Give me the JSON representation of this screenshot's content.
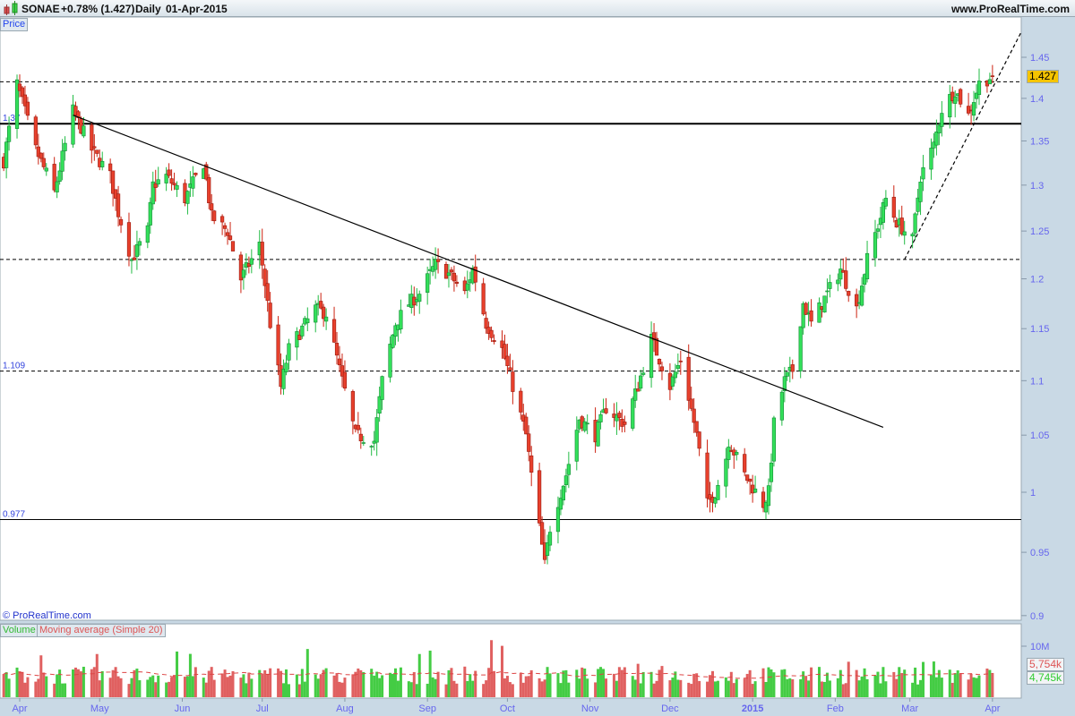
{
  "header": {
    "symbol": "SONAE",
    "change": "+0.78% (1.427)",
    "period": "Daily",
    "date": "01-Apr-2015",
    "site": "www.ProRealTime.com"
  },
  "panels": {
    "price_label": "Price",
    "copyright": "© ProRealTime.com",
    "volume_label": "Volume",
    "ma_label": "Moving average (Simple 20)"
  },
  "colors": {
    "up": "#33e05a",
    "down": "#e8402c",
    "volume_up": "#44cc44",
    "volume_down": "#e06060",
    "last_price_bg": "#f5c400"
  },
  "chart_data": [
    {
      "type": "candlestick",
      "scale": "log",
      "ylim": [
        0.9,
        1.48
      ],
      "yticks": [
        "1.45",
        "1.4",
        "1.35",
        "1.3",
        "1.25",
        "1.2",
        "1.15",
        "1.1",
        "1.05",
        "1",
        "0.95",
        "0.9"
      ],
      "xticks": [
        {
          "label": "Apr",
          "date": "2014-04-01"
        },
        {
          "label": "May",
          "date": "2014-05-01"
        },
        {
          "label": "Jun",
          "date": "2014-06-01"
        },
        {
          "label": "Jul",
          "date": "2014-07-01"
        },
        {
          "label": "Aug",
          "date": "2014-08-01"
        },
        {
          "label": "Sep",
          "date": "2014-09-01"
        },
        {
          "label": "Oct",
          "date": "2014-10-01"
        },
        {
          "label": "Nov",
          "date": "2014-11-01"
        },
        {
          "label": "Dec",
          "date": "2014-12-01"
        },
        {
          "label": "2015",
          "date": "2015-01-01"
        },
        {
          "label": "Feb",
          "date": "2015-02-01"
        },
        {
          "label": "Mar",
          "date": "2015-03-01"
        },
        {
          "label": "Apr",
          "date": "2015-04-01"
        }
      ],
      "last_price": "1.427",
      "close_path": [
        [
          "2014-03-26",
          1.327
        ],
        [
          "2014-03-31",
          1.417
        ],
        [
          "2014-04-07",
          1.34
        ],
        [
          "2014-04-14",
          1.292
        ],
        [
          "2014-04-21",
          1.385
        ],
        [
          "2014-04-28",
          1.34
        ],
        [
          "2014-05-05",
          1.31
        ],
        [
          "2014-05-08",
          1.27
        ],
        [
          "2014-05-13",
          1.22
        ],
        [
          "2014-05-19",
          1.25
        ],
        [
          "2014-05-21",
          1.3
        ],
        [
          "2014-05-26",
          1.31
        ],
        [
          "2014-06-02",
          1.285
        ],
        [
          "2014-06-09",
          1.325
        ],
        [
          "2014-06-12",
          1.265
        ],
        [
          "2014-06-18",
          1.25
        ],
        [
          "2014-06-23",
          1.2
        ],
        [
          "2014-06-30",
          1.235
        ],
        [
          "2014-07-04",
          1.155
        ],
        [
          "2014-07-08",
          1.094
        ],
        [
          "2014-07-11",
          1.13
        ],
        [
          "2014-07-16",
          1.15
        ],
        [
          "2014-07-21",
          1.17
        ],
        [
          "2014-07-25",
          1.165
        ],
        [
          "2014-07-31",
          1.1
        ],
        [
          "2014-08-05",
          1.05
        ],
        [
          "2014-08-12",
          1.045
        ],
        [
          "2014-08-15",
          1.1
        ],
        [
          "2014-08-20",
          1.155
        ],
        [
          "2014-08-25",
          1.175
        ],
        [
          "2014-08-29",
          1.185
        ],
        [
          "2014-09-04",
          1.215
        ],
        [
          "2014-09-09",
          1.205
        ],
        [
          "2014-09-15",
          1.185
        ],
        [
          "2014-09-18",
          1.21
        ],
        [
          "2014-09-23",
          1.155
        ],
        [
          "2014-09-29",
          1.13
        ],
        [
          "2014-10-03",
          1.095
        ],
        [
          "2014-10-08",
          1.05
        ],
        [
          "2014-10-10",
          1.015
        ],
        [
          "2014-10-15",
          0.94
        ],
        [
          "2014-10-17",
          0.97
        ],
        [
          "2014-10-23",
          1.015
        ],
        [
          "2014-10-28",
          1.065
        ],
        [
          "2014-11-03",
          1.05
        ],
        [
          "2014-11-07",
          1.075
        ],
        [
          "2014-11-14",
          1.06
        ],
        [
          "2014-11-19",
          1.095
        ],
        [
          "2014-11-24",
          1.14
        ],
        [
          "2014-12-01",
          1.095
        ],
        [
          "2014-12-05",
          1.12
        ],
        [
          "2014-12-11",
          1.05
        ],
        [
          "2014-12-15",
          0.99
        ],
        [
          "2014-12-18",
          1.0
        ],
        [
          "2014-12-22",
          1.03
        ],
        [
          "2014-12-23",
          1.045
        ],
        [
          "2014-12-29",
          1.015
        ],
        [
          "2015-01-05",
          0.99
        ],
        [
          "2015-01-07",
          1.0
        ],
        [
          "2015-01-09",
          1.06
        ],
        [
          "2015-01-13",
          1.1
        ],
        [
          "2015-01-16",
          1.11
        ],
        [
          "2015-01-20",
          1.175
        ],
        [
          "2015-01-23",
          1.155
        ],
        [
          "2015-01-29",
          1.185
        ],
        [
          "2015-02-03",
          1.21
        ],
        [
          "2015-02-09",
          1.17
        ],
        [
          "2015-02-13",
          1.22
        ],
        [
          "2015-02-18",
          1.265
        ],
        [
          "2015-02-20",
          1.285
        ],
        [
          "2015-02-24",
          1.26
        ],
        [
          "2015-03-02",
          1.24
        ],
        [
          "2015-03-05",
          1.31
        ],
        [
          "2015-03-10",
          1.345
        ],
        [
          "2015-03-13",
          1.387
        ],
        [
          "2015-03-18",
          1.41
        ],
        [
          "2015-03-23",
          1.38
        ],
        [
          "2015-03-27",
          1.418
        ],
        [
          "2015-04-01",
          1.427
        ]
      ],
      "horizontal_lines": [
        {
          "price": 1.42,
          "style": "dashed"
        },
        {
          "price": 1.37,
          "style": "solid-bold",
          "label": "1.37"
        },
        {
          "price": 1.22,
          "style": "dashed"
        },
        {
          "price": 1.109,
          "style": "dashed",
          "label": "1.109"
        },
        {
          "price": 0.977,
          "style": "solid",
          "label": "0.977"
        }
      ],
      "trendlines": [
        {
          "from": [
            "2014-04-21",
            1.38
          ],
          "to": [
            "2015-02-19",
            1.057
          ],
          "style": "solid"
        },
        {
          "from": [
            "2015-02-27",
            1.22
          ],
          "to": [
            "2015-04-12",
            1.483
          ],
          "style": "dashed"
        }
      ]
    },
    {
      "type": "bar",
      "name": "Volume",
      "yticks": [
        "10M"
      ],
      "ylim": [
        0,
        12000000
      ],
      "moving_average": "Simple 20",
      "ma_value": "5,754k",
      "last_value": "4,745k"
    }
  ]
}
